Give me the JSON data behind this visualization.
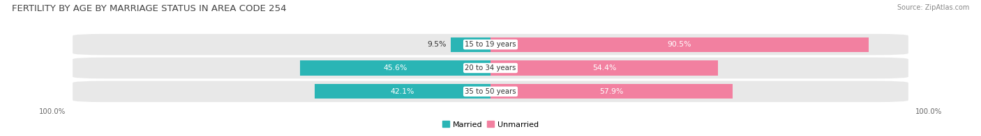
{
  "title": "FERTILITY BY AGE BY MARRIAGE STATUS IN AREA CODE 254",
  "source": "Source: ZipAtlas.com",
  "categories": [
    "15 to 19 years",
    "20 to 34 years",
    "35 to 50 years"
  ],
  "married_pct": [
    9.5,
    45.6,
    42.1
  ],
  "unmarried_pct": [
    90.5,
    54.4,
    57.9
  ],
  "married_color": "#2ab5b5",
  "unmarried_color": "#f280a0",
  "row_bg_color": "#e8e8e8",
  "married_label": "Married",
  "unmarried_label": "Unmarried",
  "axis_label_left": "100.0%",
  "axis_label_right": "100.0%",
  "fig_bg_color": "#ffffff",
  "bar_height": 0.62,
  "title_fontsize": 9.5,
  "label_fontsize": 7.8,
  "source_fontsize": 7.0,
  "legend_fontsize": 8.0
}
